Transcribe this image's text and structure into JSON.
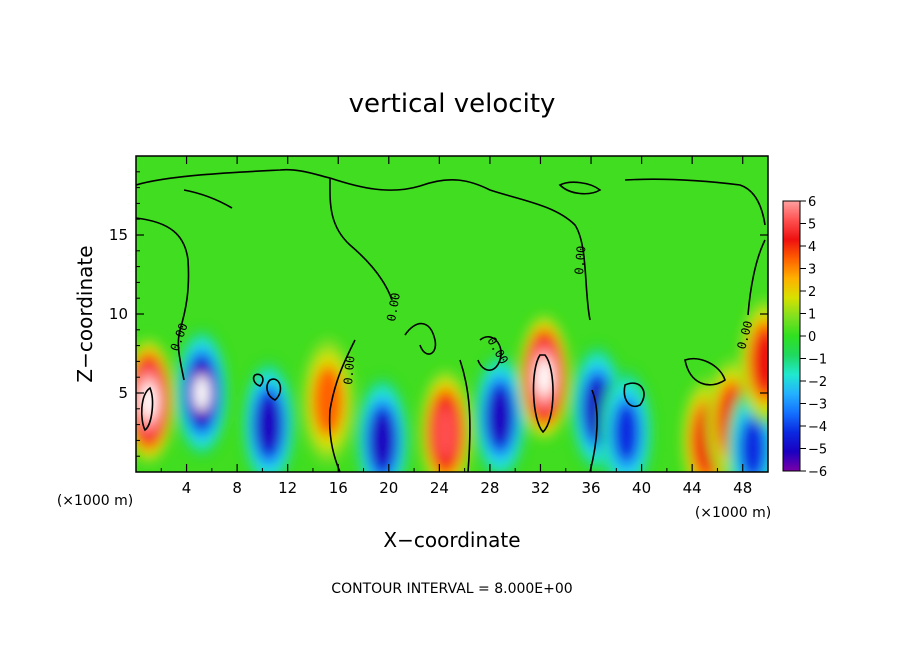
{
  "chart_data": {
    "type": "heatmap",
    "title": "vertical velocity",
    "xlabel": "X−coordinate",
    "ylabel": "Z−coordinate",
    "x_unit_label_left": "(×1000 m)",
    "x_unit_label_right": "(×1000 m)",
    "footer": "CONTOUR INTERVAL = 8.000E+00",
    "xlim": [
      0,
      50
    ],
    "ylim": [
      0,
      20
    ],
    "x_ticks": [
      "4",
      "8",
      "12",
      "16",
      "20",
      "24",
      "28",
      "32",
      "36",
      "40",
      "44",
      "48"
    ],
    "y_ticks": [
      "5",
      "10",
      "15"
    ],
    "colorbar": {
      "labels": [
        "6",
        "5",
        "4",
        "3",
        "2",
        "1",
        "0",
        "−1",
        "−2",
        "−3",
        "−4",
        "−5",
        "−6"
      ],
      "range": [
        -6,
        6
      ],
      "colors": [
        "#7a00a8",
        "#1a00c0",
        "#0a28e0",
        "#1470ff",
        "#24b0ff",
        "#20e8d0",
        "#20d860",
        "#30e020",
        "#80e020",
        "#d8e000",
        "#ffb000",
        "#ff6000",
        "#ee1010",
        "#ff5050",
        "#ffa0a0"
      ]
    },
    "contour_label": "0.00",
    "features": [
      {
        "x": 1.0,
        "z": 4.5,
        "w": 6.5
      },
      {
        "x": 5.2,
        "z": 5.0,
        "w": -6.0
      },
      {
        "x": 10.5,
        "z": 3.0,
        "w": -4.5
      },
      {
        "x": 15.2,
        "z": 4.5,
        "w": 3.0
      },
      {
        "x": 19.5,
        "z": 2.0,
        "w": -4.5
      },
      {
        "x": 24.5,
        "z": 2.5,
        "w": 4.8
      },
      {
        "x": 28.8,
        "z": 3.5,
        "w": -5.0
      },
      {
        "x": 32.3,
        "z": 6.0,
        "w": 6.5
      },
      {
        "x": 36.5,
        "z": 4.0,
        "w": -4.5
      },
      {
        "x": 38.8,
        "z": 2.5,
        "w": -3.5
      },
      {
        "x": 45.2,
        "z": 2.0,
        "w": 4.0
      },
      {
        "x": 47.2,
        "z": 3.2,
        "w": 3.5
      },
      {
        "x": 48.8,
        "z": 1.5,
        "w": -4.0
      },
      {
        "x": 49.8,
        "z": 7.0,
        "w": 3.5
      }
    ]
  }
}
